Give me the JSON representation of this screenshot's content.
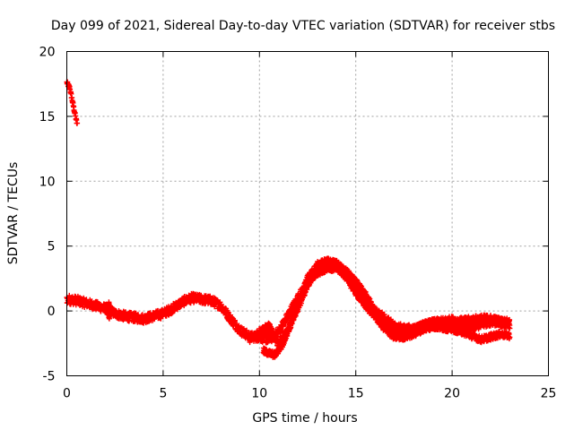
{
  "chart_data": {
    "type": "scatter",
    "title": "Day 099 of 2021, Sidereal Day-to-day VTEC variation (SDTVAR) for receiver stbs",
    "xlabel": "GPS time / hours",
    "ylabel": "SDTVAR / TECUs",
    "xlim": [
      0,
      25
    ],
    "ylim": [
      -5,
      20
    ],
    "xticks": [
      0,
      5,
      10,
      15,
      20,
      25
    ],
    "yticks": [
      -5,
      0,
      5,
      10,
      15,
      20
    ],
    "x_tick_labels": [
      "0",
      "5",
      "10",
      "15",
      "20",
      "25"
    ],
    "y_tick_labels": [
      "-5",
      "0",
      "5",
      "10",
      "15",
      "20"
    ],
    "grid": true,
    "marker": "+",
    "series": [
      {
        "name": "SDTVAR",
        "color": "#ff0000",
        "bands": [
          {
            "points": [
              [
                0.0,
                17.6
              ],
              [
                0.15,
                17.2
              ],
              [
                0.3,
                16.1
              ],
              [
                0.45,
                15.0
              ],
              [
                0.55,
                14.3
              ]
            ],
            "width": 0.3
          },
          {
            "points": [
              [
                0.0,
                0.9
              ],
              [
                0.5,
                0.8
              ],
              [
                1.0,
                0.6
              ],
              [
                1.5,
                0.4
              ],
              [
                2.0,
                0.2
              ],
              [
                2.5,
                -0.2
              ],
              [
                3.0,
                -0.4
              ],
              [
                3.5,
                -0.5
              ],
              [
                4.0,
                -0.6
              ],
              [
                4.5,
                -0.4
              ],
              [
                5.0,
                -0.2
              ],
              [
                5.5,
                0.2
              ],
              [
                6.0,
                0.7
              ],
              [
                6.5,
                1.0
              ],
              [
                7.0,
                0.9
              ],
              [
                7.5,
                0.8
              ],
              [
                8.0,
                0.4
              ],
              [
                8.5,
                -0.6
              ],
              [
                9.0,
                -1.5
              ],
              [
                9.5,
                -2.0
              ],
              [
                10.0,
                -2.0
              ],
              [
                10.5,
                -2.2
              ],
              [
                11.0,
                -1.6
              ],
              [
                11.5,
                -0.3
              ],
              [
                12.0,
                1.0
              ],
              [
                12.5,
                2.2
              ],
              [
                13.0,
                3.0
              ],
              [
                13.5,
                3.4
              ],
              [
                14.0,
                3.4
              ],
              [
                14.5,
                2.8
              ],
              [
                15.0,
                1.8
              ],
              [
                15.5,
                0.8
              ],
              [
                16.0,
                0.0
              ],
              [
                16.5,
                -0.6
              ],
              [
                17.0,
                -1.2
              ],
              [
                17.5,
                -1.4
              ],
              [
                18.0,
                -1.4
              ],
              [
                18.5,
                -1.2
              ],
              [
                19.0,
                -1.0
              ],
              [
                19.5,
                -0.9
              ],
              [
                20.0,
                -1.0
              ],
              [
                20.5,
                -1.2
              ],
              [
                21.0,
                -1.3
              ],
              [
                21.5,
                -1.0
              ],
              [
                22.0,
                -0.8
              ],
              [
                22.5,
                -0.9
              ],
              [
                23.0,
                -1.0
              ]
            ],
            "width": 0.7
          },
          {
            "points": [
              [
                9.5,
                -2.2
              ],
              [
                10.0,
                -1.6
              ],
              [
                10.5,
                -1.2
              ],
              [
                11.0,
                -2.6
              ],
              [
                11.5,
                -1.5
              ],
              [
                12.0,
                0.5
              ],
              [
                12.5,
                2.5
              ],
              [
                13.0,
                3.5
              ],
              [
                13.5,
                3.8
              ],
              [
                14.0,
                3.6
              ],
              [
                14.5,
                3.0
              ],
              [
                15.0,
                2.2
              ],
              [
                15.5,
                1.2
              ],
              [
                16.0,
                0.0
              ],
              [
                16.5,
                -1.2
              ],
              [
                17.0,
                -1.8
              ],
              [
                17.5,
                -1.7
              ],
              [
                18.0,
                -1.5
              ],
              [
                18.5,
                -1.1
              ],
              [
                19.0,
                -0.9
              ],
              [
                19.5,
                -0.8
              ],
              [
                20.0,
                -0.7
              ],
              [
                20.5,
                -0.8
              ],
              [
                21.0,
                -0.7
              ],
              [
                21.5,
                -0.6
              ],
              [
                22.0,
                -0.6
              ],
              [
                22.5,
                -0.8
              ],
              [
                23.0,
                -0.9
              ]
            ],
            "width": 0.6
          },
          {
            "points": [
              [
                10.2,
                -3.1
              ],
              [
                10.8,
                -3.4
              ],
              [
                11.2,
                -2.6
              ],
              [
                11.6,
                -1.0
              ],
              [
                12.0,
                0.2
              ],
              [
                12.5,
                2.0
              ],
              [
                13.0,
                3.2
              ],
              [
                13.5,
                3.4
              ],
              [
                14.0,
                3.5
              ],
              [
                14.5,
                2.6
              ],
              [
                15.0,
                1.4
              ],
              [
                15.5,
                0.4
              ],
              [
                16.0,
                -0.4
              ],
              [
                16.5,
                -1.4
              ],
              [
                17.0,
                -2.0
              ],
              [
                17.5,
                -2.0
              ],
              [
                18.0,
                -1.8
              ],
              [
                18.5,
                -1.4
              ],
              [
                19.0,
                -1.2
              ],
              [
                19.5,
                -1.3
              ],
              [
                20.0,
                -1.4
              ],
              [
                20.5,
                -1.6
              ],
              [
                21.0,
                -1.9
              ],
              [
                21.5,
                -2.2
              ],
              [
                22.0,
                -2.0
              ],
              [
                22.5,
                -1.8
              ],
              [
                23.0,
                -1.9
              ]
            ],
            "width": 0.5
          },
          {
            "points": [
              [
                2.2,
                0.7
              ],
              [
                2.2,
                -0.6
              ]
            ],
            "width": 0.5
          }
        ]
      }
    ]
  }
}
